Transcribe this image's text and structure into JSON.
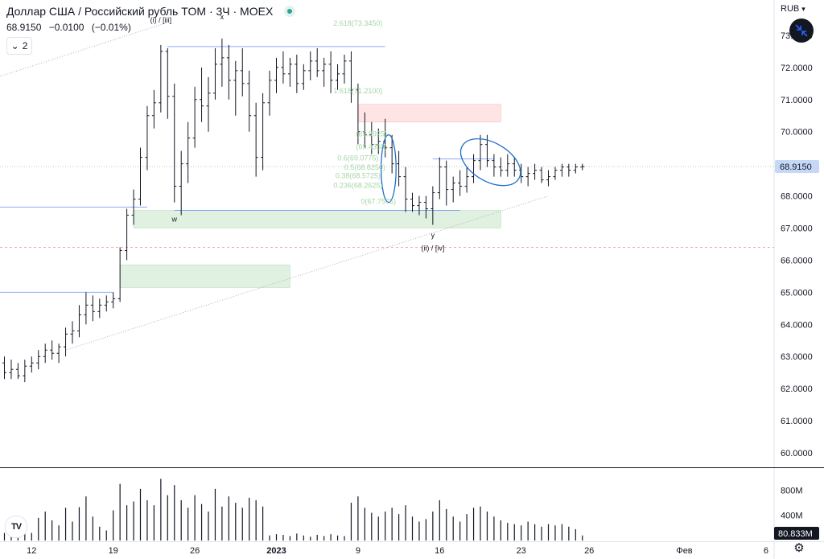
{
  "header": {
    "title": "Доллар США / Российский рубль TOM · 3Ч · MOEX",
    "price": "68.9150",
    "change": "−0.0100",
    "change_pct": "(−0.01%)",
    "indicators_count": "2",
    "currency": "RUB"
  },
  "logo": {
    "text": "TV"
  },
  "icons": {
    "status": "live-dot-icon",
    "chevron": "chevron-down-icon",
    "currency_chevron": "chevron-down-icon",
    "navigate": "arrows-collapse-icon",
    "settings": "gear-icon"
  },
  "colors": {
    "candle": "#131722",
    "trendline": "#2962ff",
    "fib_text": "#a5d6a7",
    "supply_zone": "#ffcdd2",
    "demand_zone": "#c8e6c9",
    "price_label": "#c5d9f7",
    "ellipse": "#1e6fc9"
  },
  "chart_data": {
    "type": "ohlc",
    "price_axis": {
      "range": [
        59.55,
        74.1
      ],
      "ticks": [
        "73.0000",
        "72.0000",
        "71.0000",
        "70.0000",
        "69.0000",
        "68.0000",
        "67.0000",
        "66.0000",
        "65.0000",
        "64.0000",
        "63.0000",
        "62.0000",
        "61.0000",
        "60.0000"
      ],
      "current_label": "68.9150",
      "current_value": 68.915,
      "dashed_level": 66.4
    },
    "time_axis": {
      "ticks": [
        {
          "label": "12",
          "bar": 4,
          "bold": false
        },
        {
          "label": "19",
          "bar": 16,
          "bold": false
        },
        {
          "label": "26",
          "bar": 28,
          "bold": false
        },
        {
          "label": "2023",
          "bar": 40,
          "bold": true
        },
        {
          "label": "9",
          "bar": 52,
          "bold": false
        },
        {
          "label": "16",
          "bar": 64,
          "bold": false
        },
        {
          "label": "23",
          "bar": 76,
          "bold": false
        },
        {
          "label": "26",
          "bar": 86,
          "bold": false
        },
        {
          "label": "Фев",
          "bar": 100,
          "bold": false
        },
        {
          "label": "6",
          "bar": 112,
          "bold": false
        }
      ]
    },
    "volume_axis": {
      "range": [
        0,
        1150
      ],
      "ticks": [
        "800M",
        "400M"
      ],
      "tick_values": [
        800,
        400
      ],
      "current_label": "80.833M"
    },
    "bars": [
      {
        "o": 62.8,
        "h": 63.0,
        "l": 62.3,
        "c": 62.5,
        "v": 120
      },
      {
        "o": 62.5,
        "h": 62.9,
        "l": 62.3,
        "c": 62.6,
        "v": 260
      },
      {
        "o": 62.6,
        "h": 62.8,
        "l": 62.3,
        "c": 62.4,
        "v": 330
      },
      {
        "o": 62.4,
        "h": 62.9,
        "l": 62.2,
        "c": 62.7,
        "v": 180
      },
      {
        "o": 62.7,
        "h": 63.0,
        "l": 62.5,
        "c": 62.8,
        "v": 120
      },
      {
        "o": 62.8,
        "h": 63.2,
        "l": 62.6,
        "c": 63.0,
        "v": 360
      },
      {
        "o": 63.0,
        "h": 63.4,
        "l": 62.8,
        "c": 63.2,
        "v": 460
      },
      {
        "o": 63.2,
        "h": 63.5,
        "l": 62.9,
        "c": 63.1,
        "v": 320
      },
      {
        "o": 63.1,
        "h": 63.4,
        "l": 62.8,
        "c": 63.3,
        "v": 240
      },
      {
        "o": 63.3,
        "h": 63.9,
        "l": 63.0,
        "c": 63.7,
        "v": 520
      },
      {
        "o": 63.7,
        "h": 64.1,
        "l": 63.4,
        "c": 63.8,
        "v": 300
      },
      {
        "o": 63.8,
        "h": 64.6,
        "l": 63.6,
        "c": 64.3,
        "v": 530
      },
      {
        "o": 64.3,
        "h": 65.0,
        "l": 64.0,
        "c": 64.6,
        "v": 700
      },
      {
        "o": 64.6,
        "h": 64.9,
        "l": 64.1,
        "c": 64.4,
        "v": 380
      },
      {
        "o": 64.4,
        "h": 64.8,
        "l": 64.2,
        "c": 64.6,
        "v": 220
      },
      {
        "o": 64.6,
        "h": 64.9,
        "l": 64.4,
        "c": 64.7,
        "v": 160
      },
      {
        "o": 64.7,
        "h": 65.0,
        "l": 64.5,
        "c": 64.8,
        "v": 480
      },
      {
        "o": 64.8,
        "h": 66.4,
        "l": 64.7,
        "c": 66.3,
        "v": 900
      },
      {
        "o": 66.3,
        "h": 67.6,
        "l": 66.0,
        "c": 67.4,
        "v": 560
      },
      {
        "o": 67.4,
        "h": 68.2,
        "l": 67.1,
        "c": 67.9,
        "v": 620
      },
      {
        "o": 67.9,
        "h": 69.5,
        "l": 67.7,
        "c": 69.2,
        "v": 820
      },
      {
        "o": 69.2,
        "h": 70.8,
        "l": 68.8,
        "c": 70.5,
        "v": 640
      },
      {
        "o": 70.5,
        "h": 71.3,
        "l": 70.1,
        "c": 70.9,
        "v": 560
      },
      {
        "o": 70.9,
        "h": 72.7,
        "l": 70.6,
        "c": 72.5,
        "v": 980
      },
      {
        "o": 72.5,
        "h": 72.6,
        "l": 70.4,
        "c": 71.1,
        "v": 720
      },
      {
        "o": 71.1,
        "h": 71.5,
        "l": 67.8,
        "c": 68.3,
        "v": 880
      },
      {
        "o": 68.3,
        "h": 69.4,
        "l": 67.4,
        "c": 69.0,
        "v": 640
      },
      {
        "o": 69.0,
        "h": 70.3,
        "l": 68.4,
        "c": 69.8,
        "v": 520
      },
      {
        "o": 69.8,
        "h": 71.4,
        "l": 69.5,
        "c": 71.0,
        "v": 720
      },
      {
        "o": 71.0,
        "h": 72.0,
        "l": 70.3,
        "c": 70.8,
        "v": 580
      },
      {
        "o": 70.8,
        "h": 71.7,
        "l": 70.0,
        "c": 71.2,
        "v": 460
      },
      {
        "o": 71.2,
        "h": 72.6,
        "l": 71.0,
        "c": 72.1,
        "v": 820
      },
      {
        "o": 72.1,
        "h": 72.9,
        "l": 71.4,
        "c": 72.3,
        "v": 540
      },
      {
        "o": 72.3,
        "h": 72.7,
        "l": 71.0,
        "c": 71.6,
        "v": 700
      },
      {
        "o": 71.6,
        "h": 72.2,
        "l": 70.5,
        "c": 71.9,
        "v": 600
      },
      {
        "o": 71.9,
        "h": 72.6,
        "l": 71.1,
        "c": 71.5,
        "v": 520
      },
      {
        "o": 71.5,
        "h": 71.9,
        "l": 70.0,
        "c": 70.5,
        "v": 680
      },
      {
        "o": 70.5,
        "h": 70.9,
        "l": 68.6,
        "c": 69.2,
        "v": 640
      },
      {
        "o": 69.2,
        "h": 71.2,
        "l": 68.8,
        "c": 70.9,
        "v": 540
      },
      {
        "o": 70.9,
        "h": 71.9,
        "l": 70.5,
        "c": 71.6,
        "v": 80
      },
      {
        "o": 71.6,
        "h": 72.3,
        "l": 71.2,
        "c": 72.0,
        "v": 100
      },
      {
        "o": 72.0,
        "h": 72.5,
        "l": 71.5,
        "c": 71.8,
        "v": 90
      },
      {
        "o": 71.8,
        "h": 72.3,
        "l": 71.4,
        "c": 72.1,
        "v": 70
      },
      {
        "o": 72.1,
        "h": 72.4,
        "l": 71.2,
        "c": 71.5,
        "v": 110
      },
      {
        "o": 71.5,
        "h": 72.1,
        "l": 71.3,
        "c": 71.9,
        "v": 80
      },
      {
        "o": 71.9,
        "h": 72.5,
        "l": 71.6,
        "c": 72.2,
        "v": 60
      },
      {
        "o": 72.2,
        "h": 72.6,
        "l": 71.7,
        "c": 71.9,
        "v": 90
      },
      {
        "o": 71.9,
        "h": 72.3,
        "l": 71.4,
        "c": 72.1,
        "v": 70
      },
      {
        "o": 72.1,
        "h": 72.5,
        "l": 71.2,
        "c": 71.6,
        "v": 100
      },
      {
        "o": 71.6,
        "h": 72.1,
        "l": 71.3,
        "c": 71.8,
        "v": 80
      },
      {
        "o": 71.8,
        "h": 72.4,
        "l": 71.5,
        "c": 72.2,
        "v": 70
      },
      {
        "o": 72.2,
        "h": 72.5,
        "l": 70.9,
        "c": 71.3,
        "v": 600
      },
      {
        "o": 71.3,
        "h": 71.5,
        "l": 69.6,
        "c": 70.0,
        "v": 700
      },
      {
        "o": 70.0,
        "h": 70.6,
        "l": 69.5,
        "c": 69.9,
        "v": 520
      },
      {
        "o": 69.9,
        "h": 70.3,
        "l": 69.3,
        "c": 69.6,
        "v": 440
      },
      {
        "o": 69.6,
        "h": 70.1,
        "l": 69.3,
        "c": 69.7,
        "v": 380
      },
      {
        "o": 69.7,
        "h": 70.4,
        "l": 69.2,
        "c": 69.5,
        "v": 460
      },
      {
        "o": 69.5,
        "h": 69.9,
        "l": 68.7,
        "c": 69.0,
        "v": 520
      },
      {
        "o": 69.0,
        "h": 69.4,
        "l": 68.3,
        "c": 68.6,
        "v": 420
      },
      {
        "o": 68.6,
        "h": 68.9,
        "l": 67.5,
        "c": 67.9,
        "v": 560
      },
      {
        "o": 67.9,
        "h": 68.1,
        "l": 67.5,
        "c": 67.7,
        "v": 380
      },
      {
        "o": 67.7,
        "h": 68.0,
        "l": 67.4,
        "c": 67.8,
        "v": 300
      },
      {
        "o": 67.8,
        "h": 68.0,
        "l": 67.3,
        "c": 67.6,
        "v": 340
      },
      {
        "o": 67.6,
        "h": 68.3,
        "l": 67.1,
        "c": 68.1,
        "v": 460
      },
      {
        "o": 68.1,
        "h": 69.2,
        "l": 67.9,
        "c": 68.9,
        "v": 640
      },
      {
        "o": 68.9,
        "h": 69.1,
        "l": 67.7,
        "c": 68.2,
        "v": 500
      },
      {
        "o": 68.2,
        "h": 68.6,
        "l": 67.8,
        "c": 68.4,
        "v": 380
      },
      {
        "o": 68.4,
        "h": 68.8,
        "l": 68.0,
        "c": 68.3,
        "v": 300
      },
      {
        "o": 68.3,
        "h": 68.9,
        "l": 68.1,
        "c": 68.6,
        "v": 420
      },
      {
        "o": 68.6,
        "h": 69.3,
        "l": 68.4,
        "c": 69.1,
        "v": 520
      },
      {
        "o": 69.1,
        "h": 69.9,
        "l": 68.8,
        "c": 69.6,
        "v": 540
      },
      {
        "o": 69.6,
        "h": 69.9,
        "l": 68.9,
        "c": 69.1,
        "v": 460
      },
      {
        "o": 69.1,
        "h": 69.3,
        "l": 68.6,
        "c": 68.9,
        "v": 380
      },
      {
        "o": 68.9,
        "h": 69.2,
        "l": 68.6,
        "c": 68.8,
        "v": 320
      },
      {
        "o": 68.8,
        "h": 69.3,
        "l": 68.6,
        "c": 69.0,
        "v": 280
      },
      {
        "o": 69.0,
        "h": 69.2,
        "l": 68.6,
        "c": 68.8,
        "v": 260
      },
      {
        "o": 68.8,
        "h": 69.0,
        "l": 68.4,
        "c": 68.6,
        "v": 240
      },
      {
        "o": 68.6,
        "h": 68.9,
        "l": 68.3,
        "c": 68.7,
        "v": 300
      },
      {
        "o": 68.7,
        "h": 69.0,
        "l": 68.5,
        "c": 68.8,
        "v": 260
      },
      {
        "o": 68.8,
        "h": 68.9,
        "l": 68.4,
        "c": 68.5,
        "v": 220
      },
      {
        "o": 68.5,
        "h": 68.8,
        "l": 68.3,
        "c": 68.6,
        "v": 260
      },
      {
        "o": 68.6,
        "h": 68.9,
        "l": 68.5,
        "c": 68.8,
        "v": 240
      },
      {
        "o": 68.8,
        "h": 69.0,
        "l": 68.6,
        "c": 68.9,
        "v": 260
      },
      {
        "o": 68.9,
        "h": 69.0,
        "l": 68.6,
        "c": 68.8,
        "v": 220
      },
      {
        "o": 68.8,
        "h": 69.0,
        "l": 68.7,
        "c": 68.9,
        "v": 180
      },
      {
        "o": 68.9,
        "h": 69.0,
        "l": 68.8,
        "c": 68.915,
        "v": 80
      }
    ],
    "annotations": [
      {
        "text": "(i) / [iii]",
        "bar": 23,
        "price": 73.4,
        "color": "#131722"
      },
      {
        "text": "x",
        "bar": 32,
        "price": 73.5,
        "color": "#131722"
      },
      {
        "text": "w",
        "bar": 25,
        "price": 67.2,
        "color": "#131722"
      },
      {
        "text": "y",
        "bar": 63,
        "price": 66.7,
        "color": "#131722"
      },
      {
        "text": "(ii) / [iv]",
        "bar": 63,
        "price": 66.3,
        "color": "#131722"
      },
      {
        "text": "2.618(73.3450)",
        "bar": 52,
        "price": 73.3,
        "color": "#a5d6a7"
      },
      {
        "text": "1.618(71.2100)",
        "bar": 52,
        "price": 71.2,
        "color": "#a5d6a7"
      },
      {
        "text": "(69.8925)",
        "bar": 54,
        "price": 69.85,
        "color": "#a5d6a7"
      },
      {
        "text": "(69.4350)",
        "bar": 54,
        "price": 69.45,
        "color": "#a5d6a7"
      },
      {
        "text": "0.6(69.0775)",
        "bar": 52,
        "price": 69.1,
        "color": "#a5d6a7"
      },
      {
        "text": "0.5(68.8250)",
        "bar": 53,
        "price": 68.82,
        "color": "#a5d6a7"
      },
      {
        "text": "0.38(68.5725)",
        "bar": 52,
        "price": 68.55,
        "color": "#a5d6a7"
      },
      {
        "text": "0.236(68.2625)",
        "bar": 52,
        "price": 68.25,
        "color": "#a5d6a7"
      },
      {
        "text": "0(67.7575)",
        "bar": 55,
        "price": 67.75,
        "color": "#a5d6a7"
      }
    ],
    "lines": [
      {
        "bar1": 24,
        "price1": 72.65,
        "bar2": 56,
        "price2": 72.65,
        "style": "solid"
      },
      {
        "bar1": -1,
        "price1": 67.65,
        "bar2": 21,
        "price2": 67.65,
        "style": "solid"
      },
      {
        "bar1": -1,
        "price1": 65.0,
        "bar2": 16,
        "price2": 65.0,
        "style": "solid"
      },
      {
        "bar1": 25,
        "price1": 67.55,
        "bar2": 67,
        "price2": 67.55,
        "style": "solid"
      },
      {
        "bar1": 63,
        "price1": 69.15,
        "bar2": 72,
        "price2": 69.15,
        "style": "solid"
      },
      {
        "bar1": -1,
        "price1": 71.7,
        "bar2": 24,
        "price2": 73.4,
        "style": "dotted"
      },
      {
        "bar1": 9,
        "price1": 63.2,
        "bar2": 80,
        "price2": 68.0,
        "style": "dotted"
      }
    ],
    "zones": [
      {
        "bar1": 52,
        "price1": 70.85,
        "bar2": 73,
        "price2": 70.3,
        "kind": "supply"
      },
      {
        "bar1": 19,
        "price1": 67.55,
        "bar2": 73,
        "price2": 67.0,
        "kind": "demand"
      },
      {
        "bar1": 17,
        "price1": 65.85,
        "bar2": 42,
        "price2": 65.15,
        "kind": "demand"
      }
    ],
    "ellipses": [
      {
        "bar": 56.5,
        "price": 68.85,
        "rx_bars": 1.1,
        "ry_price": 1.05,
        "angle": 0
      },
      {
        "bar": 71.5,
        "price": 69.05,
        "rx_bars": 4.8,
        "ry_price": 0.6,
        "angle": 30
      }
    ]
  }
}
